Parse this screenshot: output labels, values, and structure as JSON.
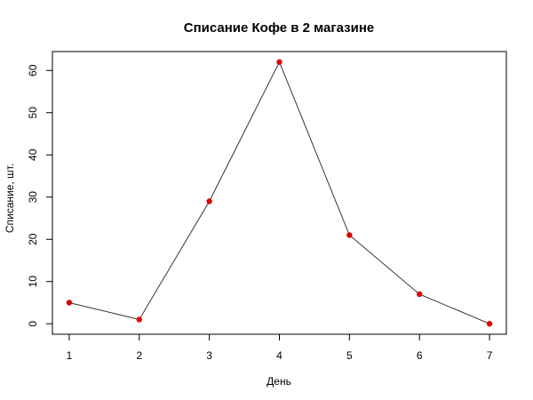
{
  "chart_data": {
    "type": "line",
    "title": "Списание Кофе в 2 магазине",
    "xlabel": "День",
    "ylabel": "Списание, шт.",
    "x": [
      1,
      2,
      3,
      4,
      5,
      6,
      7
    ],
    "series": [
      {
        "values": [
          5,
          1,
          29,
          62,
          21,
          7,
          0
        ]
      }
    ],
    "xticks": [
      1,
      2,
      3,
      4,
      5,
      6,
      7
    ],
    "yticks": [
      0,
      10,
      20,
      30,
      40,
      50,
      60
    ],
    "xlim": [
      0.76,
      7.24
    ],
    "ylim": [
      -2.48,
      64.48
    ],
    "grid": false,
    "colors": {
      "line": "#333333",
      "points": "#dd0000",
      "axes": "#000000"
    }
  }
}
